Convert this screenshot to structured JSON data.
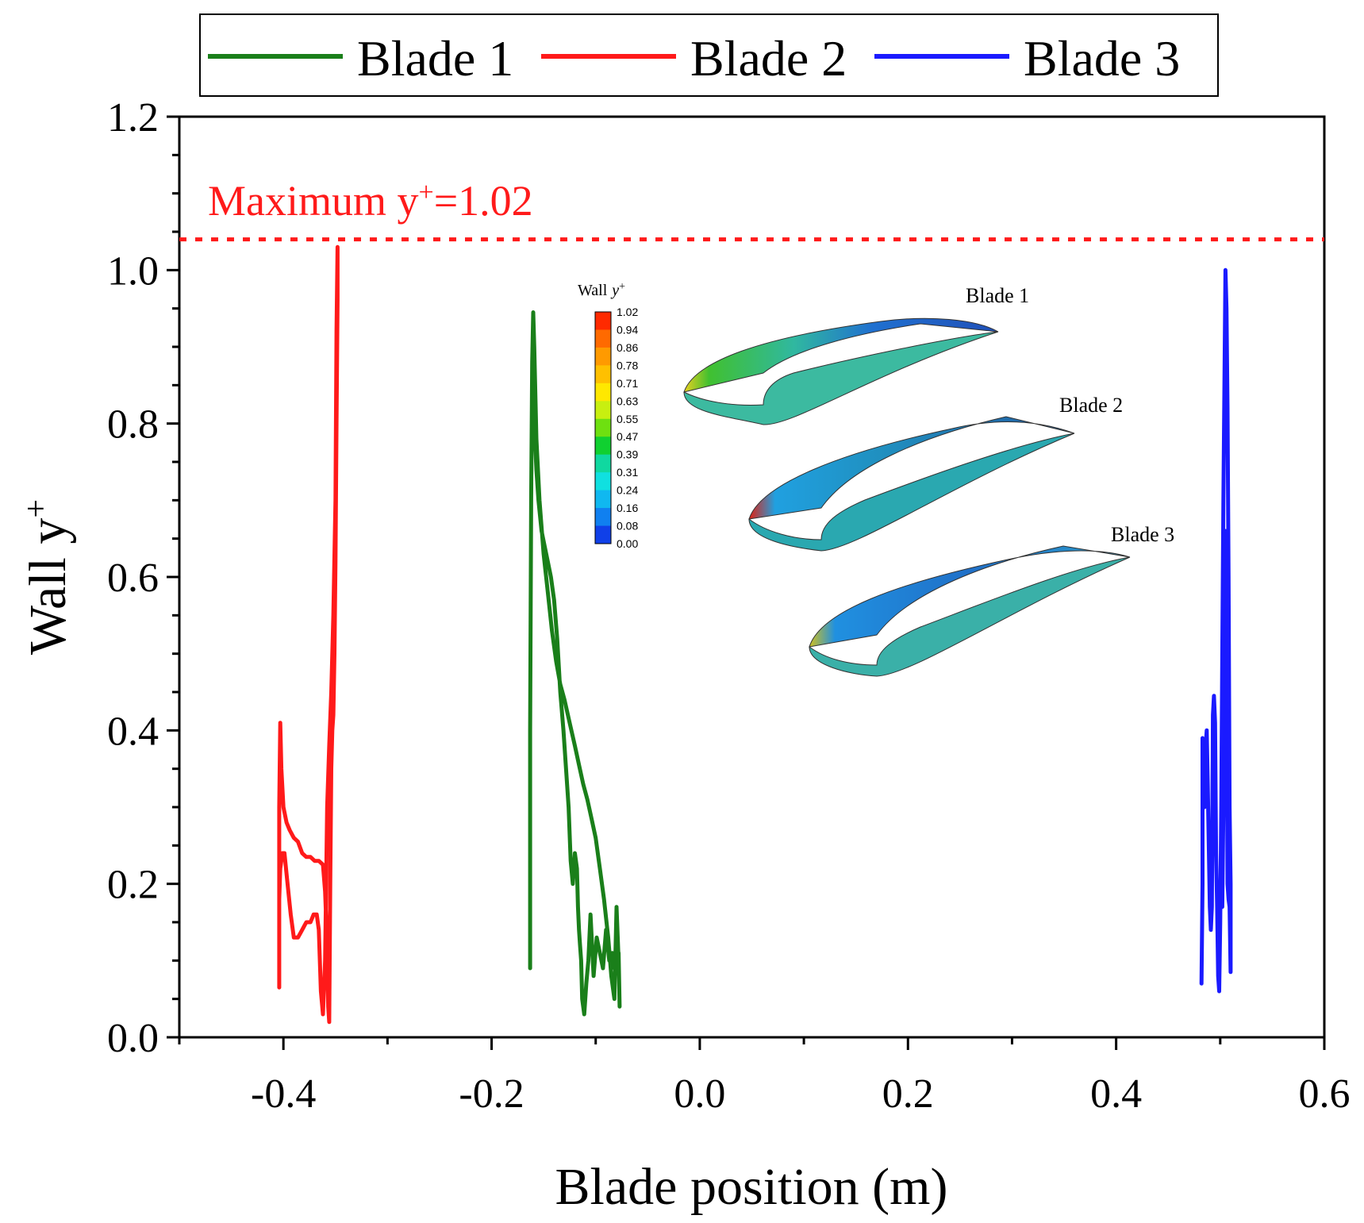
{
  "chart_data": {
    "type": "line",
    "title": "",
    "xlabel": "Blade position (m)",
    "ylabel_main": "Wall y",
    "ylabel_sup": "+",
    "xlim": [
      -0.5,
      0.6
    ],
    "ylim": [
      0.0,
      1.2
    ],
    "xticks": [
      -0.4,
      -0.2,
      0.0,
      0.2,
      0.4,
      0.6
    ],
    "xtick_labels": [
      "-0.4",
      "-0.2",
      "0.0",
      "0.2",
      "0.4",
      "0.6"
    ],
    "yticks": [
      0.0,
      0.2,
      0.4,
      0.6,
      0.8,
      1.0,
      1.2
    ],
    "ytick_labels": [
      "0.0",
      "0.2",
      "0.4",
      "0.6",
      "0.8",
      "1.0",
      "1.2"
    ],
    "grid": false,
    "legend_position": "top",
    "reference_line": {
      "y": 1.04,
      "color": "#ff1a1a",
      "style": "dotted",
      "label_prefix": "Maximum y",
      "label_sup": "+",
      "label_suffix": "=1.02"
    },
    "series": [
      {
        "name": "Blade 1",
        "color": "#1a7f1a",
        "x": [
          -0.163,
          -0.163,
          -0.162,
          -0.161,
          -0.16,
          -0.159,
          -0.157,
          -0.154,
          -0.15,
          -0.146,
          -0.142,
          -0.138,
          -0.134,
          -0.13,
          -0.125,
          -0.12,
          -0.116,
          -0.112,
          -0.108,
          -0.104,
          -0.1,
          -0.096,
          -0.092,
          -0.088,
          -0.085,
          -0.082,
          -0.08,
          -0.078,
          -0.077,
          -0.078,
          -0.08,
          -0.082,
          -0.084,
          -0.087,
          -0.09,
          -0.093,
          -0.096,
          -0.099,
          -0.102,
          -0.105,
          -0.107,
          -0.109,
          -0.111,
          -0.113,
          -0.114,
          -0.115,
          -0.116,
          -0.117,
          -0.118,
          -0.12,
          -0.122,
          -0.124,
          -0.126,
          -0.128,
          -0.131,
          -0.134,
          -0.137,
          -0.14,
          -0.143,
          -0.146,
          -0.149,
          -0.152,
          -0.155,
          -0.157,
          -0.159,
          -0.16
        ],
        "y": [
          0.09,
          0.4,
          0.7,
          0.88,
          0.945,
          0.9,
          0.78,
          0.7,
          0.63,
          0.58,
          0.53,
          0.49,
          0.46,
          0.44,
          0.41,
          0.38,
          0.355,
          0.33,
          0.31,
          0.285,
          0.26,
          0.22,
          0.18,
          0.13,
          0.08,
          0.05,
          0.17,
          0.1,
          0.04,
          0.11,
          0.1,
          0.09,
          0.11,
          0.1,
          0.14,
          0.09,
          0.11,
          0.13,
          0.08,
          0.16,
          0.1,
          0.07,
          0.03,
          0.05,
          0.1,
          0.12,
          0.14,
          0.17,
          0.22,
          0.24,
          0.2,
          0.23,
          0.3,
          0.34,
          0.4,
          0.45,
          0.52,
          0.57,
          0.6,
          0.62,
          0.64,
          0.66,
          0.7,
          0.74,
          0.8,
          0.9
        ],
        "sample": "every marker is one sampled point along the curve"
      },
      {
        "name": "Blade 2",
        "color": "#ff1a1a",
        "x": [
          -0.404,
          -0.404,
          -0.403,
          -0.402,
          -0.4,
          -0.397,
          -0.394,
          -0.39,
          -0.386,
          -0.382,
          -0.378,
          -0.374,
          -0.37,
          -0.366,
          -0.362,
          -0.36,
          -0.358,
          -0.357,
          -0.356,
          -0.355,
          -0.354,
          -0.353,
          -0.352,
          -0.351,
          -0.35,
          -0.349,
          -0.348,
          -0.348,
          -0.349,
          -0.35,
          -0.352,
          -0.354,
          -0.356,
          -0.358,
          -0.36,
          -0.362,
          -0.364,
          -0.366,
          -0.368,
          -0.371,
          -0.374,
          -0.378,
          -0.382,
          -0.386,
          -0.39,
          -0.393,
          -0.396,
          -0.399,
          -0.401,
          -0.403,
          -0.404
        ],
        "y": [
          0.065,
          0.3,
          0.41,
          0.35,
          0.3,
          0.28,
          0.27,
          0.26,
          0.255,
          0.24,
          0.235,
          0.235,
          0.23,
          0.23,
          0.225,
          0.19,
          0.12,
          0.04,
          0.02,
          0.2,
          0.35,
          0.4,
          0.42,
          0.5,
          0.62,
          0.8,
          0.96,
          1.03,
          0.92,
          0.7,
          0.55,
          0.45,
          0.38,
          0.3,
          0.1,
          0.03,
          0.06,
          0.14,
          0.16,
          0.16,
          0.15,
          0.15,
          0.14,
          0.13,
          0.13,
          0.16,
          0.2,
          0.24,
          0.24,
          0.22,
          0.18
        ],
        "sample": "every marker is one sampled point along the curve"
      },
      {
        "name": "Blade 3",
        "color": "#1a1aff",
        "x": [
          0.482,
          0.483,
          0.483,
          0.484,
          0.485,
          0.486,
          0.487,
          0.488,
          0.489,
          0.49,
          0.491,
          0.492,
          0.493,
          0.494,
          0.495,
          0.496,
          0.497,
          0.498,
          0.499,
          0.5,
          0.501,
          0.502,
          0.503,
          0.504,
          0.505,
          0.506,
          0.507,
          0.508,
          0.509,
          0.51,
          0.51,
          0.509,
          0.508,
          0.507,
          0.506,
          0.505,
          0.504,
          0.503,
          0.502,
          0.501
        ],
        "y": [
          0.07,
          0.2,
          0.39,
          0.35,
          0.3,
          0.38,
          0.4,
          0.33,
          0.25,
          0.17,
          0.14,
          0.17,
          0.42,
          0.445,
          0.41,
          0.24,
          0.17,
          0.08,
          0.06,
          0.15,
          0.3,
          0.5,
          0.7,
          0.85,
          1.0,
          0.95,
          0.82,
          0.6,
          0.3,
          0.2,
          0.085,
          0.17,
          0.18,
          0.2,
          0.55,
          0.66,
          0.52,
          0.3,
          0.17,
          0.18
        ],
        "sample": "every marker is one sampled point along the curve"
      }
    ],
    "inset": {
      "colorbar_title": "Wall",
      "colorbar_title_var": "y",
      "colorbar_title_sup": "+",
      "colorbar_levels": [
        "1.02",
        "0.94",
        "0.86",
        "0.78",
        "0.71",
        "0.63",
        "0.55",
        "0.47",
        "0.39",
        "0.31",
        "0.24",
        "0.16",
        "0.08",
        "0.00"
      ],
      "colorbar_colors": [
        "#ff2a00",
        "#ff6a00",
        "#ff9a00",
        "#ffc000",
        "#ffe800",
        "#c8ef10",
        "#6ee010",
        "#10d030",
        "#10d8a0",
        "#10e0e0",
        "#10b8f0",
        "#1080f0",
        "#1040e8",
        "#1010d0"
      ],
      "blade_labels": [
        "Blade 1",
        "Blade 2",
        "Blade 3"
      ]
    }
  }
}
